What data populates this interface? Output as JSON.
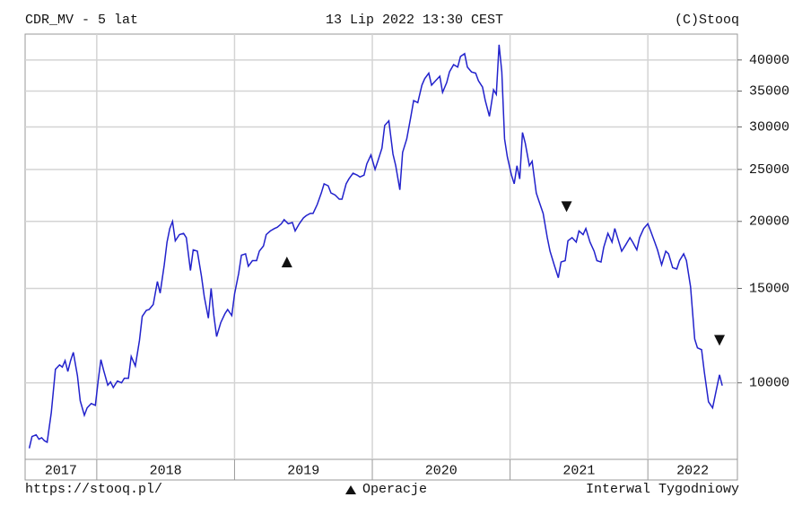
{
  "chart_data": {
    "type": "line",
    "title": "CDR_MV - 5 lat",
    "subtitle": "13 Lip 2022 13:30 CEST",
    "copyright": "(C)Stooq",
    "footer_left": "https://stooq.pl/",
    "legend_label": "Operacje",
    "footer_right": "Interwal Tygodniowy",
    "log_y": true,
    "grid": true,
    "color": "#2222cc",
    "xlim": [
      2017.48,
      2022.65
    ],
    "xticks": [
      2018,
      2019,
      2020,
      2021,
      2022
    ],
    "year_labels": [
      2017,
      2018,
      2019,
      2020,
      2021,
      2022
    ],
    "ylim": [
      7200,
      44700
    ],
    "yticks": [
      10000,
      15000,
      20000,
      25000,
      30000,
      35000,
      40000
    ],
    "x": [
      2017.51,
      2017.53,
      2017.56,
      2017.58,
      2017.6,
      2017.62,
      2017.64,
      2017.67,
      2017.7,
      2017.73,
      2017.75,
      2017.77,
      2017.79,
      2017.81,
      2017.83,
      2017.86,
      2017.88,
      2017.91,
      2017.93,
      2017.96,
      2017.99,
      2018.01,
      2018.03,
      2018.05,
      2018.08,
      2018.1,
      2018.12,
      2018.15,
      2018.18,
      2018.2,
      2018.23,
      2018.25,
      2018.28,
      2018.31,
      2018.33,
      2018.36,
      2018.38,
      2018.41,
      2018.44,
      2018.46,
      2018.49,
      2018.51,
      2018.53,
      2018.55,
      2018.57,
      2018.6,
      2018.63,
      2018.65,
      2018.68,
      2018.7,
      2018.73,
      2018.76,
      2018.78,
      2018.81,
      2018.83,
      2018.85,
      2018.87,
      2018.9,
      2018.93,
      2018.95,
      2018.98,
      2019.0,
      2019.03,
      2019.05,
      2019.08,
      2019.1,
      2019.13,
      2019.16,
      2019.18,
      2019.21,
      2019.23,
      2019.26,
      2019.29,
      2019.31,
      2019.34,
      2019.36,
      2019.39,
      2019.42,
      2019.44,
      2019.47,
      2019.5,
      2019.52,
      2019.55,
      2019.57,
      2019.6,
      2019.63,
      2019.65,
      2019.68,
      2019.7,
      2019.73,
      2019.76,
      2019.78,
      2019.81,
      2019.83,
      2019.86,
      2019.89,
      2019.91,
      2019.94,
      2019.96,
      2019.99,
      2020.02,
      2020.04,
      2020.07,
      2020.09,
      2020.12,
      2020.15,
      2020.17,
      2020.2,
      2020.22,
      2020.25,
      2020.28,
      2020.3,
      2020.33,
      2020.36,
      2020.38,
      2020.41,
      2020.43,
      2020.46,
      2020.49,
      2020.51,
      2020.54,
      2020.56,
      2020.59,
      2020.62,
      2020.64,
      2020.67,
      2020.69,
      2020.72,
      2020.75,
      2020.77,
      2020.8,
      2020.82,
      2020.85,
      2020.88,
      2020.9,
      2020.92,
      2020.94,
      2020.96,
      2020.98,
      2021.01,
      2021.03,
      2021.05,
      2021.07,
      2021.09,
      2021.11,
      2021.14,
      2021.16,
      2021.19,
      2021.21,
      2021.24,
      2021.27,
      2021.29,
      2021.32,
      2021.35,
      2021.37,
      2021.4,
      2021.42,
      2021.45,
      2021.48,
      2021.5,
      2021.53,
      2021.55,
      2021.58,
      2021.61,
      2021.63,
      2021.66,
      2021.68,
      2021.71,
      2021.74,
      2021.76,
      2021.79,
      2021.81,
      2021.84,
      2021.87,
      2021.89,
      2021.92,
      2021.94,
      2021.97,
      2022.0,
      2022.02,
      2022.05,
      2022.07,
      2022.1,
      2022.13,
      2022.15,
      2022.18,
      2022.21,
      2022.23,
      2022.26,
      2022.28,
      2022.31,
      2022.34,
      2022.36,
      2022.39,
      2022.41,
      2022.44,
      2022.47,
      2022.49,
      2022.52,
      2022.54
    ],
    "values": [
      7550,
      7940,
      8000,
      7850,
      7900,
      7800,
      7750,
      8800,
      10600,
      10800,
      10700,
      11000,
      10500,
      11000,
      11400,
      10300,
      9260,
      8700,
      8980,
      9150,
      9080,
      10080,
      11050,
      10550,
      9900,
      10040,
      9800,
      10080,
      10000,
      10200,
      10200,
      11200,
      10750,
      12000,
      13300,
      13650,
      13700,
      14000,
      15450,
      14700,
      16600,
      18300,
      19400,
      20000,
      18400,
      18900,
      19000,
      18650,
      16200,
      17700,
      17600,
      15800,
      14500,
      13200,
      15000,
      13350,
      12200,
      12950,
      13450,
      13700,
      13350,
      14640,
      16000,
      17300,
      17400,
      16500,
      16900,
      16900,
      17600,
      18000,
      18900,
      19200,
      19400,
      19500,
      19800,
      20150,
      19800,
      19900,
      19200,
      19800,
      20300,
      20500,
      20700,
      20700,
      21500,
      22600,
      23500,
      23300,
      22600,
      22400,
      22000,
      22000,
      23500,
      24000,
      24600,
      24400,
      24200,
      24400,
      25600,
      26600,
      25000,
      25900,
      27400,
      30200,
      30800,
      26700,
      25400,
      22900,
      26900,
      28500,
      31400,
      33600,
      33300,
      35900,
      36900,
      37800,
      35900,
      36600,
      37300,
      34800,
      36300,
      38000,
      39200,
      38800,
      40600,
      41100,
      38800,
      38000,
      37800,
      36600,
      35600,
      33600,
      31400,
      35200,
      34500,
      42700,
      38000,
      28500,
      26400,
      24400,
      23500,
      25400,
      24000,
      29300,
      28000,
      25400,
      25900,
      22600,
      21800,
      20700,
      18650,
      17600,
      16600,
      15700,
      16800,
      16900,
      18400,
      18650,
      18300,
      19200,
      18900,
      19400,
      18300,
      17600,
      16900,
      16800,
      17900,
      19000,
      18300,
      19400,
      18300,
      17600,
      18100,
      18650,
      18300,
      17700,
      18650,
      19400,
      19800,
      19200,
      18300,
      17700,
      16600,
      17600,
      17400,
      16400,
      16300,
      16900,
      17400,
      16900,
      15100,
      12070,
      11620,
      11530,
      10470,
      9220,
      8980,
      9510,
      10350,
      9880
    ],
    "markers": [
      {
        "x": 2019.38,
        "value": 16800,
        "direction": "up"
      },
      {
        "x": 2021.41,
        "value": 21300,
        "direction": "down"
      },
      {
        "x": 2022.52,
        "value": 12000,
        "direction": "down"
      }
    ]
  }
}
